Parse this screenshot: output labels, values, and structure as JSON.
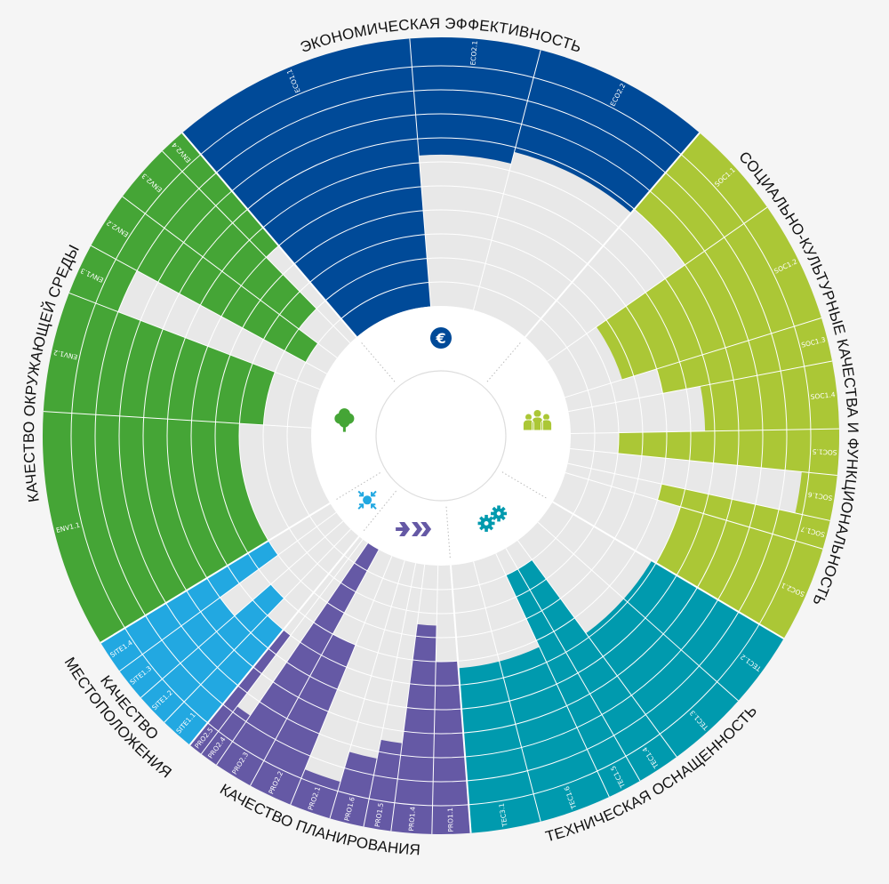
{
  "chart_data": {
    "type": "radial-bar",
    "scale_max": 10,
    "grid": true,
    "categories": [
      {
        "key": "ECO",
        "title": [
          "ЭКОНОМИЧЕСКАЯ ЭФФЕКТИВНОСТЬ"
        ],
        "color": "#004a98",
        "icon": "euro",
        "symbol": "€",
        "subs": [
          {
            "id": "ECO1.1",
            "weight": 36,
            "value": 10
          },
          {
            "id": "ECO2.1",
            "weight": 19,
            "value": 3.7
          },
          {
            "id": "ECO2.2",
            "weight": 26,
            "value": 3.2
          }
        ]
      },
      {
        "key": "SOC",
        "title": [
          "СОЦИАЛЬНО-КУЛЬТУРНЫЕ КАЧЕСТВА И ФУНКЦИОНАЛЬНОСТЬ"
        ],
        "color": "#abc736",
        "icon": "people",
        "subs": [
          {
            "id": "SOC1.1",
            "weight": 14.5,
            "value": 3
          },
          {
            "id": "SOC1.2",
            "weight": 17.8,
            "value": 7.5
          },
          {
            "id": "SOC1.3",
            "weight": 6.4,
            "value": 6
          },
          {
            "id": "SOC1.4",
            "weight": 9.8,
            "value": 4.4
          },
          {
            "id": "SOC1.5",
            "weight": 6.7,
            "value": 8
          },
          {
            "id": "SOC1.6",
            "weight": 6.6,
            "value": 0.3
          },
          {
            "id": "SOC1.7",
            "weight": 4.2,
            "value": 6
          },
          {
            "id": "SOC2.1",
            "weight": 14.1,
            "value": 5
          }
        ]
      },
      {
        "key": "TEC",
        "title": [
          "ТЕХНИЧЕСКАЯ ОСНАЩЕННОСТЬ"
        ],
        "color": "#009aae",
        "icon": "gears",
        "subs": [
          {
            "id": "TEC1.2",
            "weight": 11.1,
            "value": 5.2
          },
          {
            "id": "TEC1.3",
            "weight": 12,
            "value": 5.2
          },
          {
            "id": "TEC1.4",
            "weight": 6.3,
            "value": 9
          },
          {
            "id": "TEC1.5",
            "weight": 5,
            "value": 9
          },
          {
            "id": "TEC1.6",
            "weight": 10.5,
            "value": 5.7
          },
          {
            "id": "TEC3.1",
            "weight": 10.2,
            "value": 5.7
          }
        ]
      },
      {
        "key": "PRO",
        "title": [
          "КАЧЕСТВО ПЛАНИРОВАНИЯ"
        ],
        "color": "#6559a5",
        "icon": "arrows",
        "subs": [
          {
            "id": "PRO1.1",
            "weight": 5.6,
            "value": 6
          },
          {
            "id": "PRO1.4",
            "weight": 5.9,
            "value": 7.5
          },
          {
            "id": "PRO1.5",
            "weight": 4,
            "value": 2.5
          },
          {
            "id": "PRO1.6",
            "weight": 5,
            "value": 1.7
          },
          {
            "id": "PRO2.1",
            "weight": 6,
            "value": 0.4
          },
          {
            "id": "PRO2.2",
            "weight": 6.4,
            "value": 6
          },
          {
            "id": "PRO2.3",
            "weight": 5.7,
            "value": 10
          },
          {
            "id": "PRO2.4",
            "weight": 2.7,
            "value": 1.3
          },
          {
            "id": "PRO2.5",
            "weight": 2.1,
            "value": 5
          }
        ]
      },
      {
        "key": "SITE",
        "title": [
          "КАЧЕСТВО",
          "МЕСТОПОЛОЖЕНИЯ"
        ],
        "color": "#22a8e1",
        "icon": "site",
        "subs": [
          {
            "id": "SITE1.1",
            "weight": 4.9,
            "value": 5
          },
          {
            "id": "SITE1.2",
            "weight": 4.9,
            "value": 6
          },
          {
            "id": "SITE1.3",
            "weight": 4.9,
            "value": 4
          },
          {
            "id": "SITE1.4",
            "weight": 4.9,
            "value": 7
          }
        ]
      },
      {
        "key": "ENV",
        "title": [
          "КАЧЕСТВО ОКРУЖАЮЩЕЙ СРЕДЫ"
        ],
        "color": "#45a536",
        "icon": "tree",
        "subs": [
          {
            "id": "ENV1.1",
            "weight": 34.8,
            "value": 7
          },
          {
            "id": "ENV1.2",
            "weight": 17.5,
            "value": 8
          },
          {
            "id": "ENV1.3",
            "weight": 7.5,
            "value": 1
          },
          {
            "id": "ENV2.2",
            "weight": 8.4,
            "value": 9
          },
          {
            "id": "ENV2.3",
            "weight": 8.7,
            "value": 8
          },
          {
            "id": "ENV2.4",
            "weight": 3.9,
            "value": 5
          }
        ]
      }
    ]
  }
}
